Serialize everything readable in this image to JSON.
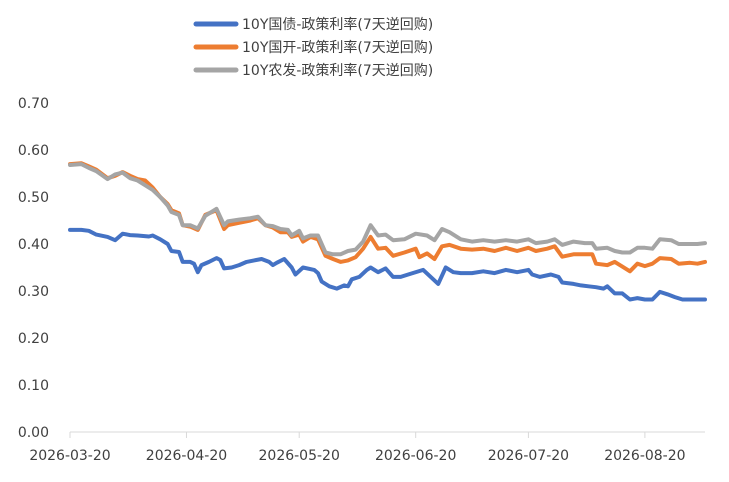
{
  "chart_data": {
    "type": "line",
    "title": "",
    "xlabel": "",
    "ylabel": "",
    "ylim": [
      0,
      0.7
    ],
    "yticks": [
      "0.00",
      "0.10",
      "0.20",
      "0.30",
      "0.40",
      "0.50",
      "0.60",
      "0.70"
    ],
    "x_start": "2026-03-20",
    "x_end": "2026-09-05",
    "xticks": [
      "2026-03-20",
      "2026-04-20",
      "2026-05-20",
      "2026-06-20",
      "2026-07-20",
      "2026-08-20"
    ],
    "legend_position": "top-center",
    "grid": false,
    "series": [
      {
        "name": "10Y国债-政策利率(7天逆回购)",
        "color": "#4472C4",
        "points": [
          [
            "2026-03-20",
            0.43
          ],
          [
            "2026-03-23",
            0.43
          ],
          [
            "2026-03-25",
            0.428
          ],
          [
            "2026-03-27",
            0.42
          ],
          [
            "2026-03-30",
            0.415
          ],
          [
            "2026-04-01",
            0.408
          ],
          [
            "2026-04-03",
            0.422
          ],
          [
            "2026-04-05",
            0.419
          ],
          [
            "2026-04-07",
            0.418
          ],
          [
            "2026-04-10",
            0.416
          ],
          [
            "2026-04-11",
            0.418
          ],
          [
            "2026-04-13",
            0.41
          ],
          [
            "2026-04-15",
            0.4
          ],
          [
            "2026-04-16",
            0.385
          ],
          [
            "2026-04-18",
            0.383
          ],
          [
            "2026-04-19",
            0.362
          ],
          [
            "2026-04-21",
            0.362
          ],
          [
            "2026-04-22",
            0.358
          ],
          [
            "2026-04-23",
            0.34
          ],
          [
            "2026-04-24",
            0.355
          ],
          [
            "2026-04-26",
            0.362
          ],
          [
            "2026-04-28",
            0.37
          ],
          [
            "2026-04-29",
            0.366
          ],
          [
            "2026-04-30",
            0.348
          ],
          [
            "2026-05-02",
            0.35
          ],
          [
            "2026-05-04",
            0.355
          ],
          [
            "2026-05-06",
            0.362
          ],
          [
            "2026-05-08",
            0.365
          ],
          [
            "2026-05-10",
            0.368
          ],
          [
            "2026-05-12",
            0.362
          ],
          [
            "2026-05-13",
            0.355
          ],
          [
            "2026-05-14",
            0.36
          ],
          [
            "2026-05-16",
            0.368
          ],
          [
            "2026-05-18",
            0.35
          ],
          [
            "2026-05-19",
            0.335
          ],
          [
            "2026-05-21",
            0.35
          ],
          [
            "2026-05-24",
            0.345
          ],
          [
            "2026-05-25",
            0.338
          ],
          [
            "2026-05-26",
            0.32
          ],
          [
            "2026-05-28",
            0.31
          ],
          [
            "2026-05-30",
            0.305
          ],
          [
            "2026-06-01",
            0.312
          ],
          [
            "2026-06-02",
            0.31
          ],
          [
            "2026-06-03",
            0.325
          ],
          [
            "2026-06-05",
            0.33
          ],
          [
            "2026-06-07",
            0.345
          ],
          [
            "2026-06-08",
            0.35
          ],
          [
            "2026-06-10",
            0.34
          ],
          [
            "2026-06-12",
            0.348
          ],
          [
            "2026-06-14",
            0.33
          ],
          [
            "2026-06-16",
            0.33
          ],
          [
            "2026-06-18",
            0.335
          ],
          [
            "2026-06-22",
            0.345
          ],
          [
            "2026-06-24",
            0.33
          ],
          [
            "2026-06-26",
            0.315
          ],
          [
            "2026-06-28",
            0.35
          ],
          [
            "2026-06-30",
            0.34
          ],
          [
            "2026-07-02",
            0.338
          ],
          [
            "2026-07-05",
            0.338
          ],
          [
            "2026-07-08",
            0.342
          ],
          [
            "2026-07-11",
            0.338
          ],
          [
            "2026-07-14",
            0.345
          ],
          [
            "2026-07-17",
            0.34
          ],
          [
            "2026-07-20",
            0.345
          ],
          [
            "2026-07-21",
            0.335
          ],
          [
            "2026-07-23",
            0.33
          ],
          [
            "2026-07-26",
            0.335
          ],
          [
            "2026-07-28",
            0.33
          ],
          [
            "2026-07-29",
            0.318
          ],
          [
            "2026-08-01",
            0.315
          ],
          [
            "2026-08-03",
            0.312
          ],
          [
            "2026-08-05",
            0.31
          ],
          [
            "2026-08-07",
            0.308
          ],
          [
            "2026-08-09",
            0.305
          ],
          [
            "2026-08-10",
            0.31
          ],
          [
            "2026-08-12",
            0.295
          ],
          [
            "2026-08-14",
            0.295
          ],
          [
            "2026-08-16",
            0.282
          ],
          [
            "2026-08-18",
            0.285
          ],
          [
            "2026-08-20",
            0.282
          ],
          [
            "2026-08-22",
            0.282
          ],
          [
            "2026-08-24",
            0.298
          ],
          [
            "2026-08-26",
            0.293
          ],
          [
            "2026-08-28",
            0.287
          ],
          [
            "2026-08-30",
            0.282
          ],
          [
            "2026-09-02",
            0.282
          ],
          [
            "2026-09-05",
            0.282
          ]
        ]
      },
      {
        "name": "10Y国开-政策利率(7天逆回购)",
        "color": "#ED7D31",
        "points": [
          [
            "2026-03-20",
            0.57
          ],
          [
            "2026-03-23",
            0.572
          ],
          [
            "2026-03-25",
            0.565
          ],
          [
            "2026-03-27",
            0.558
          ],
          [
            "2026-03-30",
            0.54
          ],
          [
            "2026-04-01",
            0.545
          ],
          [
            "2026-04-03",
            0.553
          ],
          [
            "2026-04-05",
            0.545
          ],
          [
            "2026-04-07",
            0.538
          ],
          [
            "2026-04-09",
            0.535
          ],
          [
            "2026-04-11",
            0.52
          ],
          [
            "2026-04-13",
            0.5
          ],
          [
            "2026-04-15",
            0.485
          ],
          [
            "2026-04-16",
            0.472
          ],
          [
            "2026-04-18",
            0.465
          ],
          [
            "2026-04-19",
            0.44
          ],
          [
            "2026-04-21",
            0.437
          ],
          [
            "2026-04-23",
            0.43
          ],
          [
            "2026-04-25",
            0.462
          ],
          [
            "2026-04-28",
            0.472
          ],
          [
            "2026-04-30",
            0.432
          ],
          [
            "2026-05-01",
            0.44
          ],
          [
            "2026-05-04",
            0.445
          ],
          [
            "2026-05-07",
            0.45
          ],
          [
            "2026-05-09",
            0.455
          ],
          [
            "2026-05-11",
            0.44
          ],
          [
            "2026-05-13",
            0.435
          ],
          [
            "2026-05-15",
            0.425
          ],
          [
            "2026-05-17",
            0.425
          ],
          [
            "2026-05-18",
            0.415
          ],
          [
            "2026-05-20",
            0.42
          ],
          [
            "2026-05-21",
            0.405
          ],
          [
            "2026-05-23",
            0.415
          ],
          [
            "2026-05-25",
            0.41
          ],
          [
            "2026-05-27",
            0.375
          ],
          [
            "2026-05-29",
            0.368
          ],
          [
            "2026-05-31",
            0.362
          ],
          [
            "2026-06-02",
            0.365
          ],
          [
            "2026-06-04",
            0.372
          ],
          [
            "2026-06-06",
            0.39
          ],
          [
            "2026-06-08",
            0.415
          ],
          [
            "2026-06-10",
            0.39
          ],
          [
            "2026-06-12",
            0.392
          ],
          [
            "2026-06-14",
            0.375
          ],
          [
            "2026-06-17",
            0.382
          ],
          [
            "2026-06-20",
            0.39
          ],
          [
            "2026-06-21",
            0.372
          ],
          [
            "2026-06-23",
            0.38
          ],
          [
            "2026-06-25",
            0.368
          ],
          [
            "2026-06-27",
            0.395
          ],
          [
            "2026-06-29",
            0.398
          ],
          [
            "2026-07-02",
            0.39
          ],
          [
            "2026-07-05",
            0.388
          ],
          [
            "2026-07-08",
            0.39
          ],
          [
            "2026-07-11",
            0.385
          ],
          [
            "2026-07-14",
            0.392
          ],
          [
            "2026-07-17",
            0.385
          ],
          [
            "2026-07-20",
            0.392
          ],
          [
            "2026-07-22",
            0.385
          ],
          [
            "2026-07-25",
            0.39
          ],
          [
            "2026-07-27",
            0.395
          ],
          [
            "2026-07-29",
            0.373
          ],
          [
            "2026-08-01",
            0.378
          ],
          [
            "2026-08-04",
            0.378
          ],
          [
            "2026-08-06",
            0.378
          ],
          [
            "2026-08-07",
            0.358
          ],
          [
            "2026-08-10",
            0.355
          ],
          [
            "2026-08-12",
            0.362
          ],
          [
            "2026-08-14",
            0.352
          ],
          [
            "2026-08-16",
            0.342
          ],
          [
            "2026-08-18",
            0.358
          ],
          [
            "2026-08-20",
            0.353
          ],
          [
            "2026-08-22",
            0.358
          ],
          [
            "2026-08-24",
            0.37
          ],
          [
            "2026-08-27",
            0.368
          ],
          [
            "2026-08-29",
            0.358
          ],
          [
            "2026-09-01",
            0.36
          ],
          [
            "2026-09-03",
            0.358
          ],
          [
            "2026-09-05",
            0.362
          ]
        ]
      },
      {
        "name": "10Y农发-政策利率(7天逆回购)",
        "color": "#A5A5A5",
        "points": [
          [
            "2026-03-20",
            0.568
          ],
          [
            "2026-03-23",
            0.57
          ],
          [
            "2026-03-25",
            0.562
          ],
          [
            "2026-03-27",
            0.555
          ],
          [
            "2026-03-30",
            0.538
          ],
          [
            "2026-04-01",
            0.548
          ],
          [
            "2026-04-03",
            0.552
          ],
          [
            "2026-04-05",
            0.54
          ],
          [
            "2026-04-07",
            0.535
          ],
          [
            "2026-04-09",
            0.525
          ],
          [
            "2026-04-11",
            0.515
          ],
          [
            "2026-04-13",
            0.5
          ],
          [
            "2026-04-15",
            0.482
          ],
          [
            "2026-04-16",
            0.468
          ],
          [
            "2026-04-18",
            0.462
          ],
          [
            "2026-04-19",
            0.44
          ],
          [
            "2026-04-21",
            0.44
          ],
          [
            "2026-04-23",
            0.433
          ],
          [
            "2026-04-25",
            0.46
          ],
          [
            "2026-04-28",
            0.475
          ],
          [
            "2026-04-30",
            0.44
          ],
          [
            "2026-05-01",
            0.448
          ],
          [
            "2026-05-04",
            0.452
          ],
          [
            "2026-05-07",
            0.455
          ],
          [
            "2026-05-09",
            0.458
          ],
          [
            "2026-05-11",
            0.44
          ],
          [
            "2026-05-13",
            0.438
          ],
          [
            "2026-05-15",
            0.432
          ],
          [
            "2026-05-17",
            0.43
          ],
          [
            "2026-05-18",
            0.418
          ],
          [
            "2026-05-20",
            0.428
          ],
          [
            "2026-05-21",
            0.412
          ],
          [
            "2026-05-23",
            0.418
          ],
          [
            "2026-05-25",
            0.418
          ],
          [
            "2026-05-27",
            0.382
          ],
          [
            "2026-05-29",
            0.378
          ],
          [
            "2026-05-31",
            0.378
          ],
          [
            "2026-06-02",
            0.385
          ],
          [
            "2026-06-04",
            0.388
          ],
          [
            "2026-06-06",
            0.405
          ],
          [
            "2026-06-08",
            0.44
          ],
          [
            "2026-06-10",
            0.418
          ],
          [
            "2026-06-12",
            0.42
          ],
          [
            "2026-06-14",
            0.408
          ],
          [
            "2026-06-17",
            0.41
          ],
          [
            "2026-06-20",
            0.422
          ],
          [
            "2026-06-23",
            0.418
          ],
          [
            "2026-06-25",
            0.408
          ],
          [
            "2026-06-27",
            0.432
          ],
          [
            "2026-06-29",
            0.425
          ],
          [
            "2026-07-02",
            0.41
          ],
          [
            "2026-07-05",
            0.405
          ],
          [
            "2026-07-08",
            0.408
          ],
          [
            "2026-07-11",
            0.405
          ],
          [
            "2026-07-14",
            0.408
          ],
          [
            "2026-07-17",
            0.405
          ],
          [
            "2026-07-20",
            0.41
          ],
          [
            "2026-07-22",
            0.402
          ],
          [
            "2026-07-25",
            0.405
          ],
          [
            "2026-07-27",
            0.41
          ],
          [
            "2026-07-29",
            0.398
          ],
          [
            "2026-08-01",
            0.405
          ],
          [
            "2026-08-04",
            0.402
          ],
          [
            "2026-08-06",
            0.402
          ],
          [
            "2026-08-07",
            0.39
          ],
          [
            "2026-08-10",
            0.392
          ],
          [
            "2026-08-12",
            0.385
          ],
          [
            "2026-08-14",
            0.382
          ],
          [
            "2026-08-16",
            0.382
          ],
          [
            "2026-08-18",
            0.392
          ],
          [
            "2026-08-20",
            0.392
          ],
          [
            "2026-08-22",
            0.39
          ],
          [
            "2026-08-24",
            0.41
          ],
          [
            "2026-08-27",
            0.408
          ],
          [
            "2026-08-29",
            0.4
          ],
          [
            "2026-09-01",
            0.4
          ],
          [
            "2026-09-03",
            0.4
          ],
          [
            "2026-09-05",
            0.402
          ]
        ]
      }
    ]
  }
}
